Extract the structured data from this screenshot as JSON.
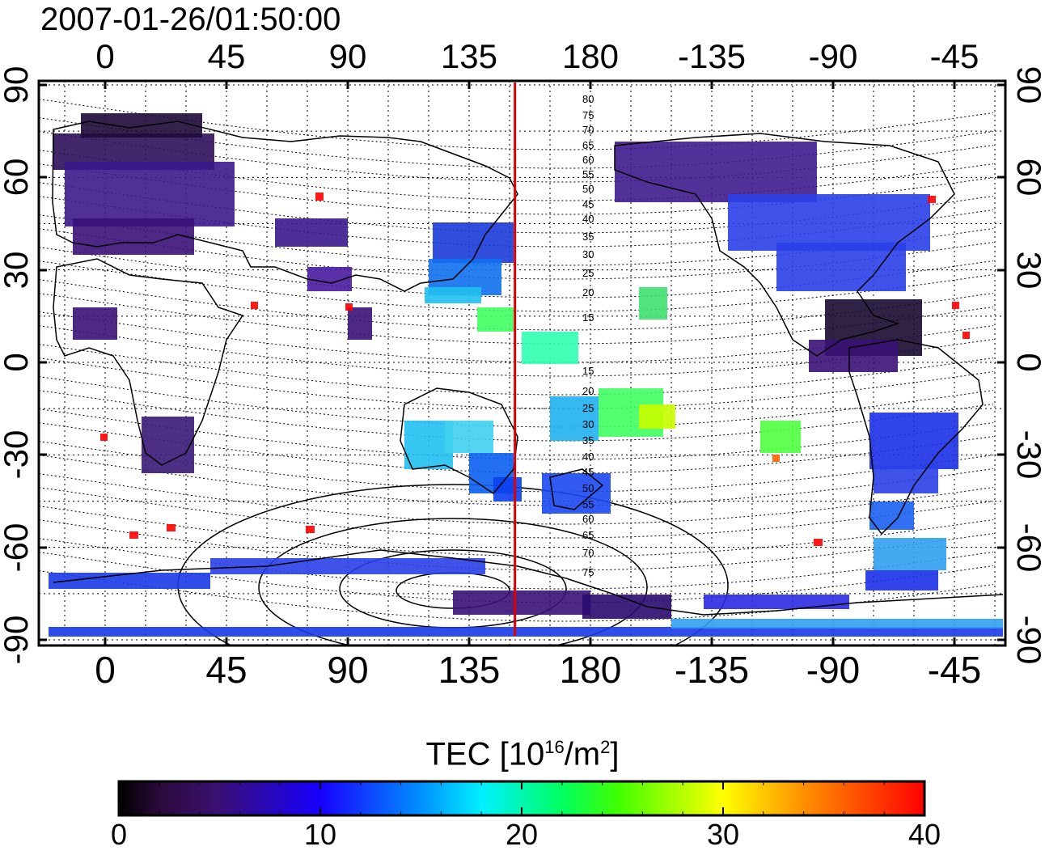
{
  "timestamp": "2007-01-26/01:50:00",
  "axes": {
    "x_ticks": [
      "0",
      "45",
      "90",
      "135",
      "180",
      "-135",
      "-90",
      "-45"
    ],
    "y_ticks": [
      "90",
      "60",
      "30",
      "0",
      "-30",
      "-60",
      "-90"
    ]
  },
  "terminator_longitude": 152,
  "contour_labels": [
    "80",
    "75",
    "70",
    "65",
    "60",
    "55",
    "50",
    "45",
    "40",
    "35",
    "30",
    "25",
    "20",
    "15",
    "15",
    "20",
    "25",
    "30",
    "35",
    "40",
    "45",
    "50",
    "55",
    "60",
    "65",
    "70",
    "75"
  ],
  "colorbar": {
    "title_prefix": "TEC  [10",
    "title_exp": "16",
    "title_mid": "/m",
    "title_exp2": "2",
    "title_suffix": "]",
    "ticks": [
      "0",
      "10",
      "20",
      "30",
      "40"
    ],
    "range": [
      0,
      40
    ]
  },
  "colors": {
    "terminator": "#dd0000",
    "frame": "#000000"
  }
}
